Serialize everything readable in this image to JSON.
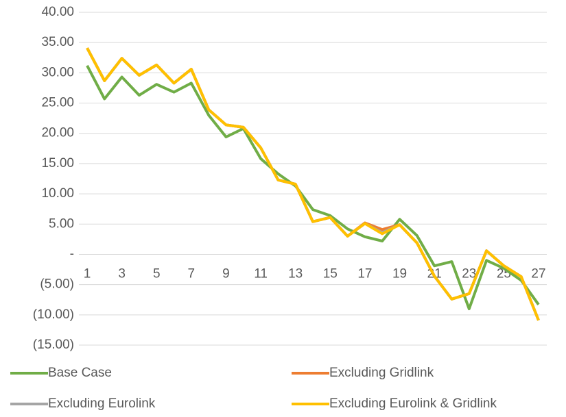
{
  "chart_data": {
    "type": "line",
    "categories": [
      "1",
      null,
      "3",
      null,
      "5",
      null,
      "7",
      null,
      "9",
      null,
      "11",
      null,
      "13",
      null,
      "15",
      null,
      "17",
      null,
      "19",
      null,
      "21",
      null,
      "23",
      null,
      "25",
      null,
      "27"
    ],
    "series": [
      {
        "name": "Base Case",
        "color": "#70ad47",
        "values": [
          31.2,
          25.7,
          29.3,
          26.3,
          28.1,
          26.8,
          28.3,
          23.0,
          19.4,
          20.8,
          15.8,
          13.3,
          11.3,
          7.4,
          6.4,
          4.2,
          2.9,
          2.2,
          5.8,
          3.1,
          -1.9,
          -1.2,
          -9.0,
          -1.0,
          -2.3,
          -4.3,
          -8.3
        ]
      },
      {
        "name": "Excluding Gridlink",
        "color": "#ed7d31",
        "values": [
          34.1,
          28.7,
          32.4,
          29.6,
          31.3,
          28.3,
          30.6,
          23.9,
          21.4,
          21.0,
          17.6,
          12.3,
          11.6,
          5.4,
          6.1,
          3.0,
          5.2,
          4.1,
          4.9,
          1.9,
          -3.6,
          -7.4,
          -6.5,
          0.6,
          -1.9,
          -3.7,
          -10.9
        ]
      },
      {
        "name": "Excluding Eurolink",
        "color": "#a5a5a5",
        "values": [
          34.1,
          28.7,
          32.4,
          29.6,
          31.3,
          28.3,
          30.6,
          23.9,
          21.4,
          21.0,
          17.6,
          12.3,
          11.6,
          5.4,
          6.1,
          3.0,
          5.1,
          3.6,
          4.9,
          1.9,
          -3.6,
          -7.4,
          -6.5,
          0.6,
          -1.9,
          -3.7,
          -10.9
        ]
      },
      {
        "name": "Excluding Eurolink & Gridlink",
        "color": "#ffc000",
        "values": [
          34.1,
          28.7,
          32.4,
          29.6,
          31.3,
          28.3,
          30.6,
          23.9,
          21.4,
          21.0,
          17.6,
          12.3,
          11.6,
          5.4,
          6.1,
          3.0,
          5.1,
          3.4,
          4.9,
          1.9,
          -3.6,
          -7.4,
          -6.5,
          0.6,
          -1.9,
          -3.7,
          -10.9
        ]
      }
    ],
    "ylim": [
      -15,
      40
    ],
    "yticks": [
      {
        "value": -15,
        "label": "(15.00)"
      },
      {
        "value": -10,
        "label": "(10.00)"
      },
      {
        "value": -5,
        "label": "(5.00)"
      },
      {
        "value": 0,
        "label": "-"
      },
      {
        "value": 5,
        "label": "5.00"
      },
      {
        "value": 10,
        "label": "10.00"
      },
      {
        "value": 15,
        "label": "15.00"
      },
      {
        "value": 20,
        "label": "20.00"
      },
      {
        "value": 25,
        "label": "25.00"
      },
      {
        "value": 30,
        "label": "30.00"
      },
      {
        "value": 35,
        "label": "35.00"
      },
      {
        "value": 40,
        "label": "40.00"
      }
    ],
    "grid": true,
    "legend": "bottom"
  }
}
